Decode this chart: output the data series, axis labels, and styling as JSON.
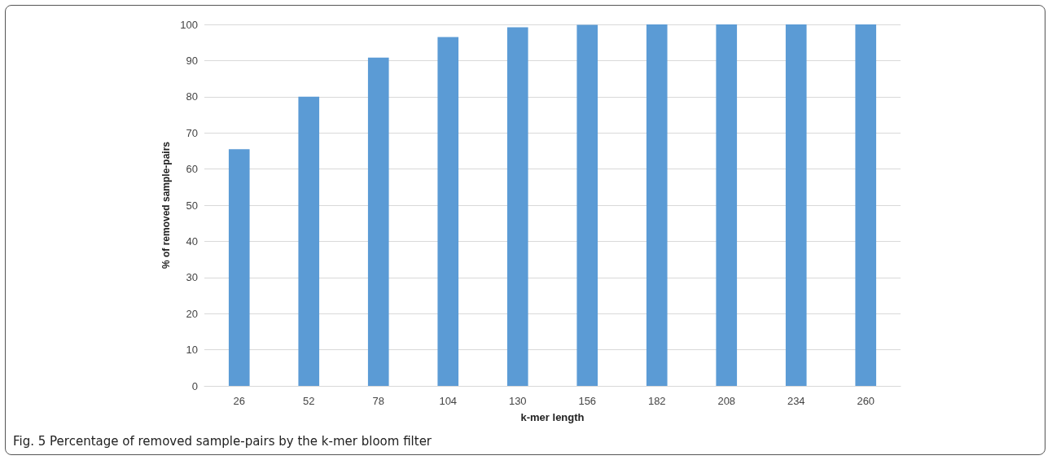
{
  "chart_data": {
    "type": "bar",
    "xlabel": "k-mer length",
    "ylabel": "% of removed sample-pairs",
    "categories": [
      "26",
      "52",
      "78",
      "104",
      "130",
      "156",
      "182",
      "208",
      "234",
      "260"
    ],
    "values": [
      65.5,
      80,
      90.8,
      96.5,
      99.2,
      99.9,
      100,
      100,
      100,
      100
    ],
    "color": "#5b9bd5",
    "ylim": [
      0,
      100
    ],
    "yticks": [
      0,
      10,
      20,
      30,
      40,
      50,
      60,
      70,
      80,
      90,
      100
    ],
    "grid": "y",
    "annotations": [
      "Fig. 5 Percentage of removed sample-pairs by the k-mer bloom filter"
    ]
  }
}
